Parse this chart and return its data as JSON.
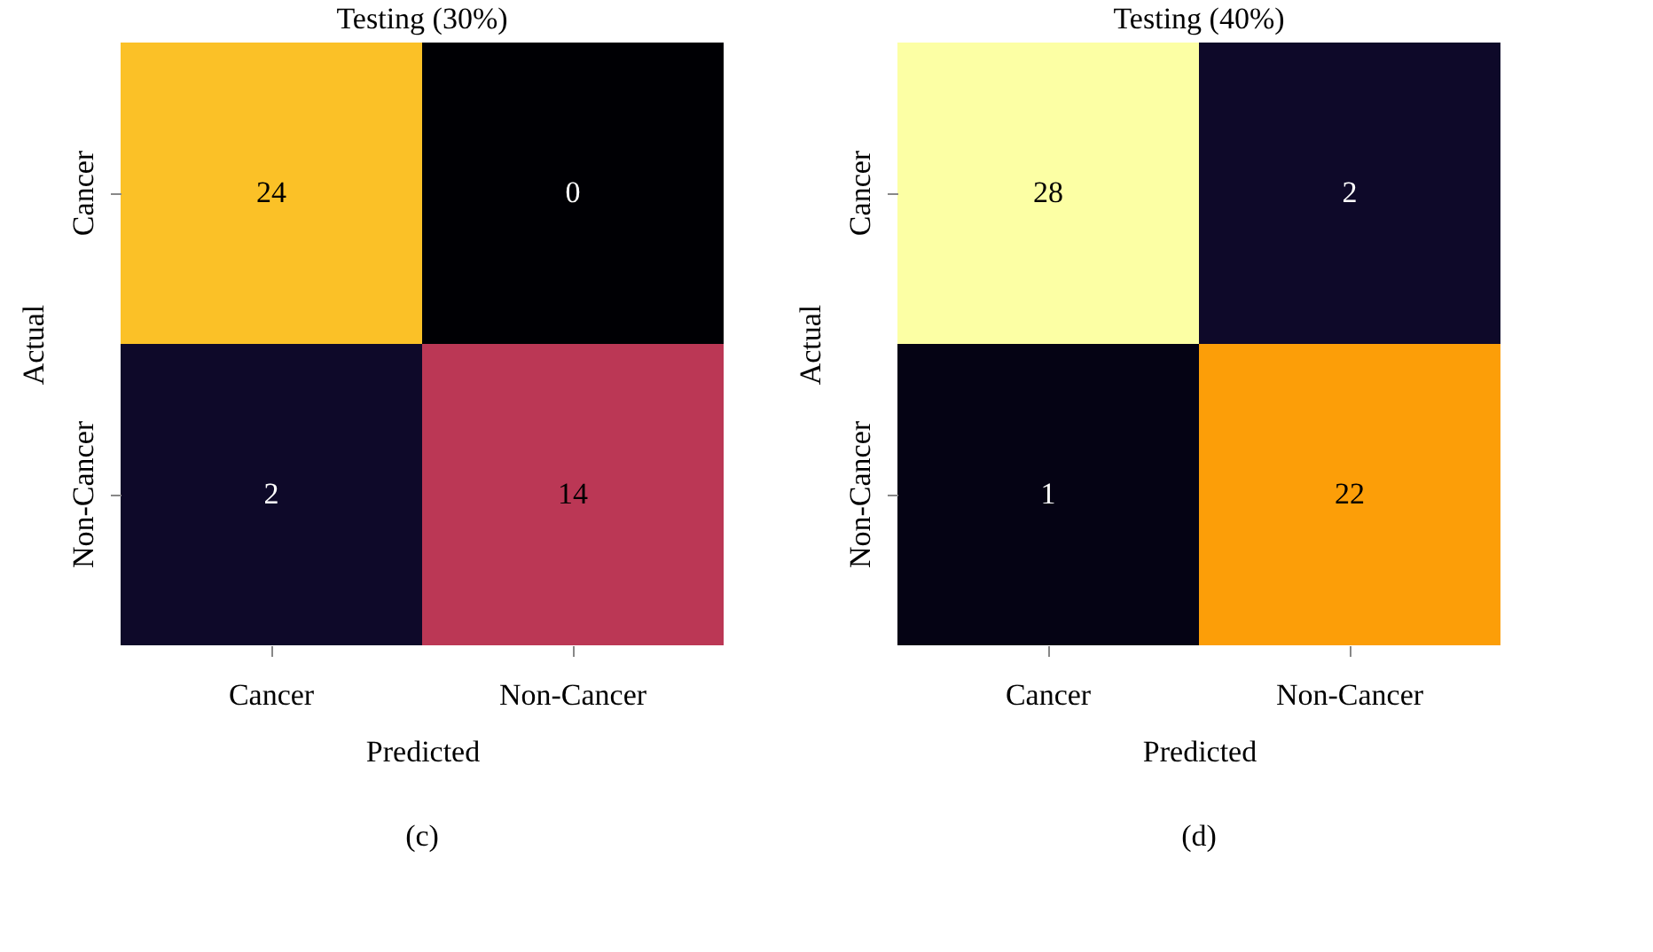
{
  "chart_data": [
    {
      "type": "heatmap",
      "title": "Testing (30%)",
      "categories": [
        "Cancer",
        "Non-Cancer"
      ],
      "y_categories": [
        "Cancer",
        "Non-Cancer"
      ],
      "cells": [
        [
          24,
          0
        ],
        [
          2,
          14
        ]
      ],
      "data_labels": true,
      "xlabel": "Predicted",
      "ylabel": "Actual",
      "annotations": [
        "(c)"
      ]
    },
    {
      "type": "heatmap",
      "title": "Testing (40%)",
      "categories": [
        "Cancer",
        "Non-Cancer"
      ],
      "y_categories": [
        "Cancer",
        "Non-Cancer"
      ],
      "cells": [
        [
          28,
          2
        ],
        [
          1,
          22
        ]
      ],
      "data_labels": true,
      "xlabel": "Predicted",
      "ylabel": "Actual",
      "annotations": [
        "(d)"
      ]
    }
  ]
}
